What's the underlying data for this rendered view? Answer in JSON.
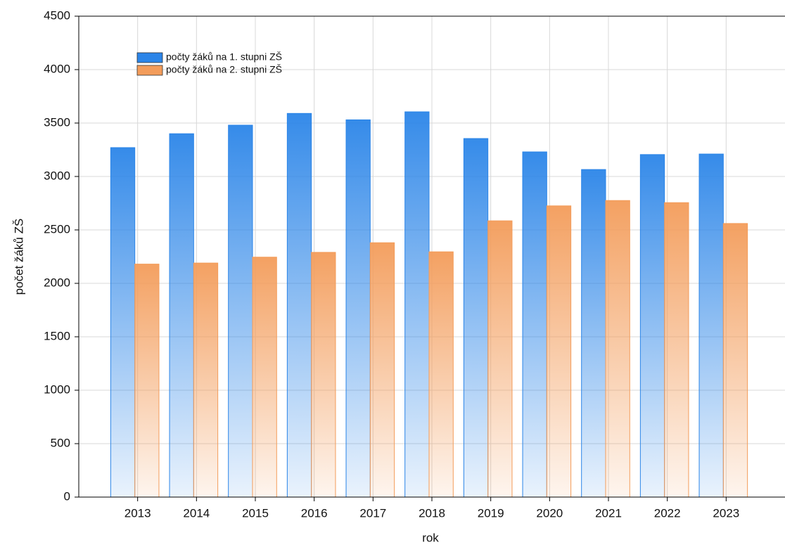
{
  "chart_data": {
    "type": "bar",
    "x_label": "rok",
    "y_label": "počet žáků ZŠ",
    "categories": [
      "2013",
      "2014",
      "2015",
      "2016",
      "2017",
      "2018",
      "2019",
      "2020",
      "2021",
      "2022",
      "2023"
    ],
    "series": [
      {
        "name": "počty žáků na 1. stupni ZŠ",
        "color": "#2b85e8",
        "values": [
          3270,
          3400,
          3480,
          3590,
          3530,
          3605,
          3355,
          3230,
          3065,
          3205,
          3210
        ]
      },
      {
        "name": "počty žáků na 2. stupni ZŠ",
        "color": "#f39c5a",
        "values": [
          2180,
          2190,
          2245,
          2290,
          2380,
          2295,
          2585,
          2725,
          2775,
          2755,
          2560
        ]
      }
    ],
    "ylim": [
      0,
      4500
    ],
    "yticks": [
      0,
      500,
      1000,
      1500,
      2000,
      2500,
      3000,
      3500,
      4000,
      4500
    ],
    "grid": true,
    "legend": "top-left"
  }
}
